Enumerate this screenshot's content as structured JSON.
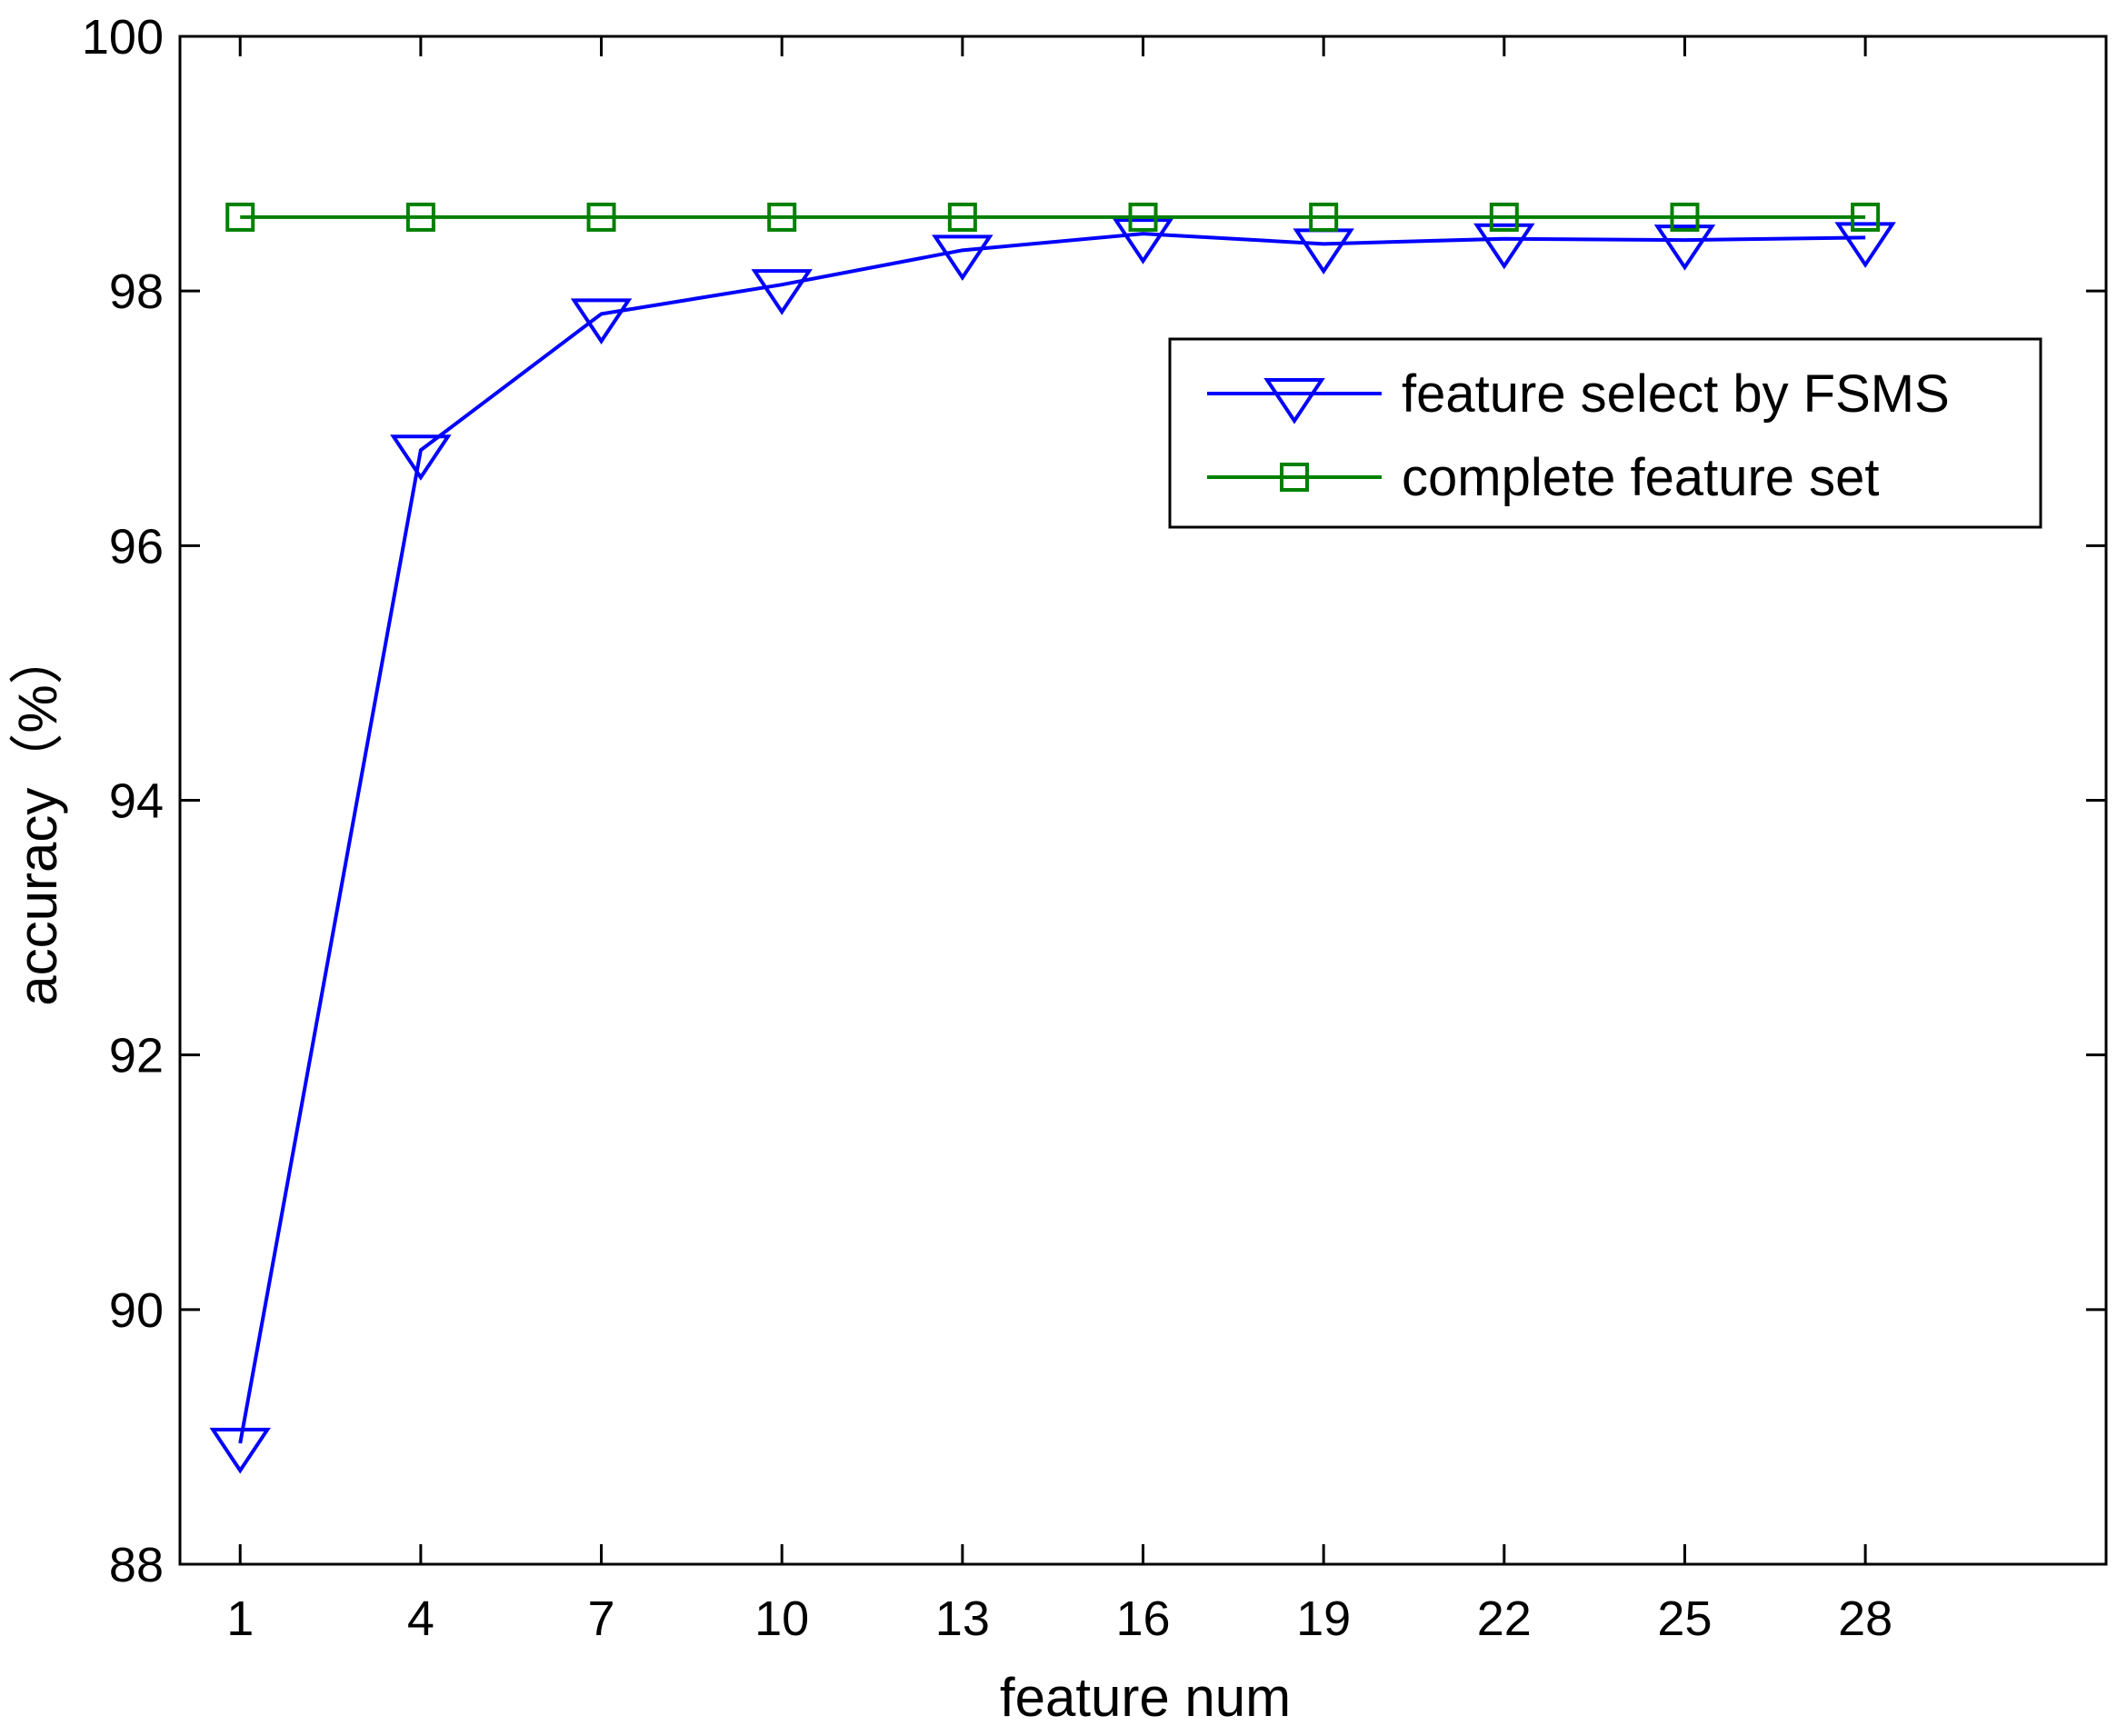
{
  "chart_data": {
    "type": "line",
    "title": "",
    "xlabel": "feature num",
    "ylabel": "accuracy（%）",
    "x": [
      1,
      4,
      7,
      10,
      13,
      16,
      19,
      22,
      25,
      28
    ],
    "xlim": [
      0,
      32
    ],
    "ylim": [
      88,
      100
    ],
    "x_ticks": [
      "1",
      "4",
      "7",
      "10",
      "13",
      "16",
      "19",
      "22",
      "25",
      "28"
    ],
    "y_ticks": [
      "88",
      "90",
      "92",
      "94",
      "96",
      "98",
      "100"
    ],
    "grid": false,
    "legend_position": "upper-right",
    "series": [
      {
        "name": "feature select by FSMS",
        "color": "#0000ff",
        "marker": "triangle-down",
        "values": [
          88.95,
          96.75,
          97.82,
          98.05,
          98.32,
          98.45,
          98.37,
          98.41,
          98.4,
          98.42
        ]
      },
      {
        "name": "complete feature set",
        "color": "#008000",
        "marker": "square",
        "values": [
          98.58,
          98.58,
          98.58,
          98.58,
          98.58,
          98.58,
          98.58,
          98.58,
          98.58,
          98.58
        ]
      }
    ]
  }
}
